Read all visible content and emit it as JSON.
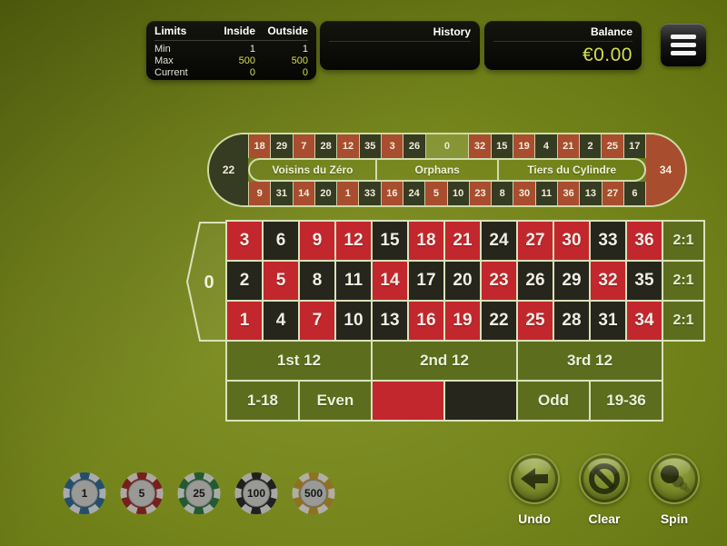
{
  "top_bar": {
    "limits": {
      "title": "Limits",
      "col_inside": "Inside",
      "col_outside": "Outside",
      "rows": [
        {
          "label": "Min",
          "inside": "1",
          "outside": "1"
        },
        {
          "label": "Max",
          "inside": "500",
          "outside": "500"
        },
        {
          "label": "Current",
          "inside": "0",
          "outside": "0"
        }
      ]
    },
    "history": {
      "title": "History"
    },
    "balance": {
      "title": "Balance",
      "amount": "€0.00"
    },
    "menu_icon": "hamburger-menu-icon"
  },
  "racetrack": {
    "sections": [
      "Voisins du Zéro",
      "Orphans",
      "Tiers du Cylindre"
    ],
    "left_end": {
      "n": "22",
      "color": "black"
    },
    "right_end": {
      "n": "34",
      "color": "red"
    },
    "top": [
      {
        "n": "18",
        "color": "red"
      },
      {
        "n": "29",
        "color": "black"
      },
      {
        "n": "7",
        "color": "red"
      },
      {
        "n": "28",
        "color": "black"
      },
      {
        "n": "12",
        "color": "red"
      },
      {
        "n": "35",
        "color": "black"
      },
      {
        "n": "3",
        "color": "red"
      },
      {
        "n": "26",
        "color": "black"
      },
      {
        "n": "0",
        "color": "zero"
      },
      {
        "n": "32",
        "color": "red"
      },
      {
        "n": "15",
        "color": "black"
      },
      {
        "n": "19",
        "color": "red"
      },
      {
        "n": "4",
        "color": "black"
      },
      {
        "n": "21",
        "color": "red"
      },
      {
        "n": "2",
        "color": "black"
      },
      {
        "n": "25",
        "color": "red"
      },
      {
        "n": "17",
        "color": "black"
      }
    ],
    "bottom": [
      {
        "n": "9",
        "color": "red"
      },
      {
        "n": "31",
        "color": "black"
      },
      {
        "n": "14",
        "color": "red"
      },
      {
        "n": "20",
        "color": "black"
      },
      {
        "n": "1",
        "color": "red"
      },
      {
        "n": "33",
        "color": "black"
      },
      {
        "n": "16",
        "color": "red"
      },
      {
        "n": "24",
        "color": "black"
      },
      {
        "n": "5",
        "color": "red"
      },
      {
        "n": "10",
        "color": "black"
      },
      {
        "n": "23",
        "color": "red"
      },
      {
        "n": "8",
        "color": "black"
      },
      {
        "n": "30",
        "color": "red"
      },
      {
        "n": "11",
        "color": "black"
      },
      {
        "n": "36",
        "color": "red"
      },
      {
        "n": "13",
        "color": "black"
      },
      {
        "n": "27",
        "color": "red"
      },
      {
        "n": "6",
        "color": "black"
      }
    ]
  },
  "table": {
    "zero_label": "0",
    "column_bet_label": "2:1",
    "rows": [
      {
        "cells": [
          {
            "n": "3",
            "color": "red"
          },
          {
            "n": "6",
            "color": "black"
          },
          {
            "n": "9",
            "color": "red"
          },
          {
            "n": "12",
            "color": "red"
          },
          {
            "n": "15",
            "color": "black"
          },
          {
            "n": "18",
            "color": "red"
          },
          {
            "n": "21",
            "color": "red"
          },
          {
            "n": "24",
            "color": "black"
          },
          {
            "n": "27",
            "color": "red"
          },
          {
            "n": "30",
            "color": "red"
          },
          {
            "n": "33",
            "color": "black"
          },
          {
            "n": "36",
            "color": "red"
          }
        ]
      },
      {
        "cells": [
          {
            "n": "2",
            "color": "black"
          },
          {
            "n": "5",
            "color": "red"
          },
          {
            "n": "8",
            "color": "black"
          },
          {
            "n": "11",
            "color": "black"
          },
          {
            "n": "14",
            "color": "red"
          },
          {
            "n": "17",
            "color": "black"
          },
          {
            "n": "20",
            "color": "black"
          },
          {
            "n": "23",
            "color": "red"
          },
          {
            "n": "26",
            "color": "black"
          },
          {
            "n": "29",
            "color": "black"
          },
          {
            "n": "32",
            "color": "red"
          },
          {
            "n": "35",
            "color": "black"
          }
        ]
      },
      {
        "cells": [
          {
            "n": "1",
            "color": "red"
          },
          {
            "n": "4",
            "color": "black"
          },
          {
            "n": "7",
            "color": "red"
          },
          {
            "n": "10",
            "color": "black"
          },
          {
            "n": "13",
            "color": "black"
          },
          {
            "n": "16",
            "color": "red"
          },
          {
            "n": "19",
            "color": "red"
          },
          {
            "n": "22",
            "color": "black"
          },
          {
            "n": "25",
            "color": "red"
          },
          {
            "n": "28",
            "color": "black"
          },
          {
            "n": "31",
            "color": "black"
          },
          {
            "n": "34",
            "color": "red"
          }
        ]
      }
    ],
    "dozens": [
      "1st 12",
      "2nd 12",
      "3rd 12"
    ],
    "outside": [
      {
        "label": "1-18"
      },
      {
        "label": "Even"
      },
      {
        "swatch": "red"
      },
      {
        "swatch": "black"
      },
      {
        "label": "Odd"
      },
      {
        "label": "19-36"
      }
    ]
  },
  "chips": [
    {
      "value": "1",
      "color": "#2f6a93"
    },
    {
      "value": "5",
      "color": "#a32a26"
    },
    {
      "value": "25",
      "color": "#2c7a40"
    },
    {
      "value": "100",
      "color": "#2b2b2b"
    },
    {
      "value": "500",
      "color": "#c09a28"
    }
  ],
  "actions": {
    "undo": {
      "label": "Undo",
      "icon": "undo-arrow-icon"
    },
    "clear": {
      "label": "Clear",
      "icon": "prohibition-icon"
    },
    "spin": {
      "label": "Spin",
      "icon": "ball-spin-icon"
    }
  },
  "colors": {
    "table_red": "#c1272d",
    "table_black": "#26261c",
    "track_red": "#a84e2e",
    "track_black": "#363c22",
    "bet_area_green": "#5c6e1e",
    "border_pale": "#d9e2ba",
    "accent_yellow": "#d3de4d"
  }
}
